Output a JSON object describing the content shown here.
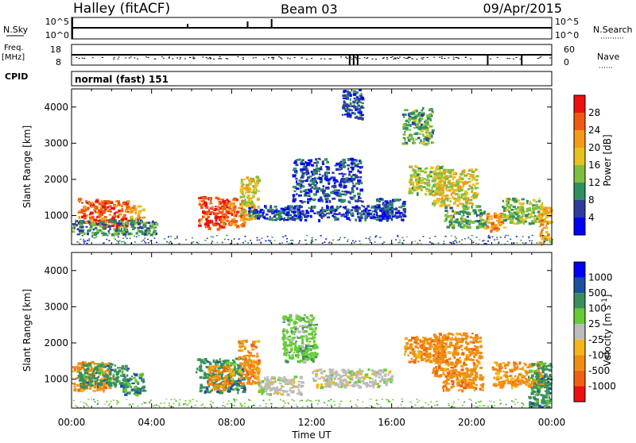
{
  "header": {
    "station": "Halley (fitACF)",
    "beam": "Beam 03",
    "date": "09/Apr/2015"
  },
  "strips": {
    "nsky_label": "N.Sky",
    "nsearch_label": "N.Search",
    "nsky_ticks": [
      "10^5",
      "10^0"
    ],
    "nsearch_ticks": [
      "10^5",
      "10^0"
    ],
    "freq_label": "Freq.",
    "freq_unit": "[MHz]",
    "freq_ticks": [
      "18",
      "8"
    ],
    "nave_label": "Nave",
    "nave_ticks": [
      "60",
      "0"
    ],
    "cpid_label": "CPID",
    "cpid_text": "normal (fast) 151"
  },
  "colors": {
    "power": [
      "#0000ff",
      "#2e3c9e",
      "#2f8f5e",
      "#7fbf3f",
      "#e8c020",
      "#f59a18",
      "#ef5a10",
      "#ee1010"
    ],
    "velocity": [
      "#0000ff",
      "#1c50a0",
      "#3a8f5a",
      "#66cc33",
      "#bcbcbc",
      "#f5b518",
      "#f08e12",
      "#f06010",
      "#ee1010"
    ]
  },
  "chart_data": [
    {
      "type": "heatmap",
      "name": "power",
      "ylabel": "Slant Range [km]",
      "ylim": [
        200,
        4500
      ],
      "y_ticks": [
        1000,
        2000,
        3000,
        4000
      ],
      "x_ticks": [
        "00:00",
        "04:00",
        "08:00",
        "12:00",
        "16:00",
        "20:00",
        "00:00"
      ],
      "colorbar": {
        "label": "Power [dB]",
        "ticks": [
          4,
          8,
          12,
          16,
          20,
          24,
          28
        ],
        "range": [
          0,
          32
        ]
      },
      "regions": [
        {
          "t": [
            0.3,
            1.6
          ],
          "r": [
            750,
            1500
          ],
          "v": 26
        },
        {
          "t": [
            1.3,
            2.8
          ],
          "r": [
            700,
            1450
          ],
          "v": 27
        },
        {
          "t": [
            2.8,
            3.6
          ],
          "r": [
            800,
            1300
          ],
          "v": 20
        },
        {
          "t": [
            0.0,
            4.2
          ],
          "r": [
            500,
            900
          ],
          "v": 10
        },
        {
          "t": [
            6.3,
            7.6
          ],
          "r": [
            650,
            1550
          ],
          "v": 28
        },
        {
          "t": [
            7.5,
            8.6
          ],
          "r": [
            700,
            1500
          ],
          "v": 26
        },
        {
          "t": [
            8.4,
            9.3
          ],
          "r": [
            900,
            2100
          ],
          "v": 18
        },
        {
          "t": [
            8.8,
            16.0
          ],
          "r": [
            900,
            1300
          ],
          "v": 6
        },
        {
          "t": [
            15.2,
            16.6
          ],
          "r": [
            900,
            1500
          ],
          "v": 6
        },
        {
          "t": [
            16.8,
            18.5
          ],
          "r": [
            1600,
            2400
          ],
          "v": 16
        },
        {
          "t": [
            18.0,
            20.2
          ],
          "r": [
            1300,
            2300
          ],
          "v": 17
        },
        {
          "t": [
            18.6,
            20.6
          ],
          "r": [
            700,
            1300
          ],
          "v": 12
        },
        {
          "t": [
            20.6,
            21.6
          ],
          "r": [
            600,
            1100
          ],
          "v": 23
        },
        {
          "t": [
            21.5,
            23.5
          ],
          "r": [
            800,
            1500
          ],
          "v": 14
        },
        {
          "t": [
            23.3,
            24.0
          ],
          "r": [
            200,
            1300
          ],
          "v": 20
        },
        {
          "t": [
            11.0,
            14.5
          ],
          "r": [
            1400,
            2600
          ],
          "v": 6
        },
        {
          "t": [
            13.5,
            14.5
          ],
          "r": [
            3700,
            4500
          ],
          "v": 6
        },
        {
          "t": [
            16.5,
            18.0
          ],
          "r": [
            3000,
            4000
          ],
          "v": 12
        }
      ]
    },
    {
      "type": "heatmap",
      "name": "velocity",
      "ylabel": "Slant Range [km]",
      "xlabel": "Time UT",
      "ylim": [
        200,
        4500
      ],
      "y_ticks": [
        1000,
        2000,
        3000,
        4000
      ],
      "x_ticks": [
        "00:00",
        "04:00",
        "08:00",
        "12:00",
        "16:00",
        "20:00",
        "00:00"
      ],
      "colorbar": {
        "label": "Velocity [m s^-1]",
        "ticks": [
          "1000",
          "500",
          "100",
          "25",
          "-25",
          "-100",
          "-500",
          "-1000"
        ]
      },
      "regions": [
        {
          "t": [
            0.0,
            2.0
          ],
          "r": [
            700,
            1500
          ],
          "c": 6
        },
        {
          "t": [
            0.3,
            2.8
          ],
          "r": [
            800,
            1450
          ],
          "c": 2
        },
        {
          "t": [
            2.5,
            3.6
          ],
          "r": [
            600,
            1200
          ],
          "c": 2
        },
        {
          "t": [
            6.2,
            8.6
          ],
          "r": [
            650,
            1600
          ],
          "c": 2
        },
        {
          "t": [
            6.8,
            8.0
          ],
          "r": [
            700,
            1400
          ],
          "c": 6
        },
        {
          "t": [
            8.3,
            9.3
          ],
          "r": [
            900,
            2100
          ],
          "c": 6
        },
        {
          "t": [
            9.3,
            11.5
          ],
          "r": [
            600,
            1100
          ],
          "c": 4
        },
        {
          "t": [
            12.0,
            16.0
          ],
          "r": [
            800,
            1300
          ],
          "c": 4
        },
        {
          "t": [
            16.6,
            18.6
          ],
          "r": [
            1500,
            2200
          ],
          "c": 6
        },
        {
          "t": [
            18.0,
            20.4
          ],
          "r": [
            1100,
            2300
          ],
          "c": 6
        },
        {
          "t": [
            18.5,
            20.5
          ],
          "r": [
            700,
            1200
          ],
          "c": 6
        },
        {
          "t": [
            21.0,
            23.6
          ],
          "r": [
            800,
            1500
          ],
          "c": 6
        },
        {
          "t": [
            22.8,
            24.0
          ],
          "r": [
            200,
            1500
          ],
          "c": 2
        },
        {
          "t": [
            10.5,
            12.2
          ],
          "r": [
            1500,
            2800
          ],
          "c": 3
        }
      ]
    }
  ]
}
